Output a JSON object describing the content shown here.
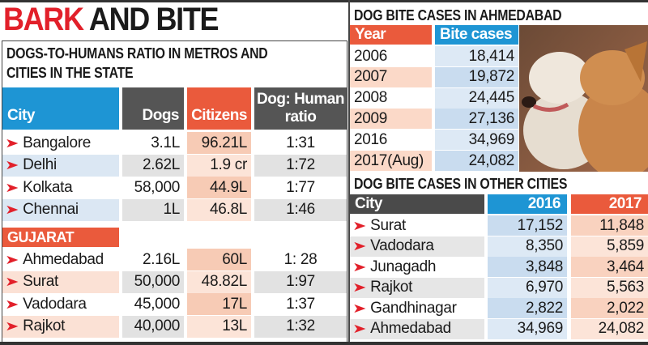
{
  "title": {
    "part1": "BARK",
    "part2": "AND BITE"
  },
  "ratio_table": {
    "subtitle_line1": "DOGS-TO-HUMANS RATIO IN METROS AND",
    "subtitle_line2": "CITIES IN THE STATE",
    "headers": {
      "city": "City",
      "dogs": "Dogs",
      "citizens": "Citizens",
      "ratio_line1": "Dog: Human",
      "ratio_line2": "ratio"
    },
    "metros": [
      {
        "city": "Bangalore",
        "dogs": "3.1L",
        "citizens": "96.21L",
        "ratio": "1:31"
      },
      {
        "city": "Delhi",
        "dogs": "2.62L",
        "citizens": "1.9 cr",
        "ratio": "1:72"
      },
      {
        "city": "Kolkata",
        "dogs": "58,000",
        "citizens": "44.9L",
        "ratio": "1:77"
      },
      {
        "city": "Chennai",
        "dogs": "1L",
        "citizens": "46.8L",
        "ratio": "1:46"
      }
    ],
    "state_label": "GUJARAT",
    "state": [
      {
        "city": "Ahmedabad",
        "dogs": "2.16L",
        "citizens": "60L",
        "ratio": "1: 28"
      },
      {
        "city": "Surat",
        "dogs": "50,000",
        "citizens": "48.82L",
        "ratio": "1:97"
      },
      {
        "city": "Vadodara",
        "dogs": "45,000",
        "citizens": "17L",
        "ratio": "1:37"
      },
      {
        "city": "Rajkot",
        "dogs": "40,000",
        "citizens": "13L",
        "ratio": "1:32"
      }
    ]
  },
  "ahmedabad_table": {
    "title": "DOG BITE CASES IN AHMEDABAD",
    "headers": {
      "year": "Year",
      "cases": "Bite cases"
    },
    "rows": [
      {
        "year": "2006",
        "cases": "18,414"
      },
      {
        "year": "2007",
        "cases": "19,872"
      },
      {
        "year": "2008",
        "cases": "24,445"
      },
      {
        "year": "2009",
        "cases": "27,136"
      },
      {
        "year": "2016",
        "cases": "34,969"
      },
      {
        "year": "2017(Aug)",
        "cases": "24,082"
      }
    ]
  },
  "other_cities_table": {
    "title": "DOG BITE CASES IN OTHER CITIES",
    "headers": {
      "city": "City",
      "y2016": "2016",
      "y2017": "2017"
    },
    "rows": [
      {
        "city": "Surat",
        "y2016": "17,152",
        "y2017": "11,848"
      },
      {
        "city": "Vadodara",
        "y2016": "8,350",
        "y2017": "5,859"
      },
      {
        "city": "Junagadh",
        "y2016": "3,848",
        "y2017": "3,464"
      },
      {
        "city": "Rajkot",
        "y2016": "6,970",
        "y2017": "5,563"
      },
      {
        "city": "Gandhinagar",
        "y2016": "2,822",
        "y2017": "2,022"
      },
      {
        "city": "Ahmedabad",
        "y2016": "34,969",
        "y2017": "24,082"
      }
    ]
  },
  "colors": {
    "red": "#e2202a",
    "blue": "#1e95d4",
    "orange": "#ea5a3c",
    "gray": "#555555"
  },
  "icons": {
    "bullet": "arrowhead-right-icon"
  }
}
